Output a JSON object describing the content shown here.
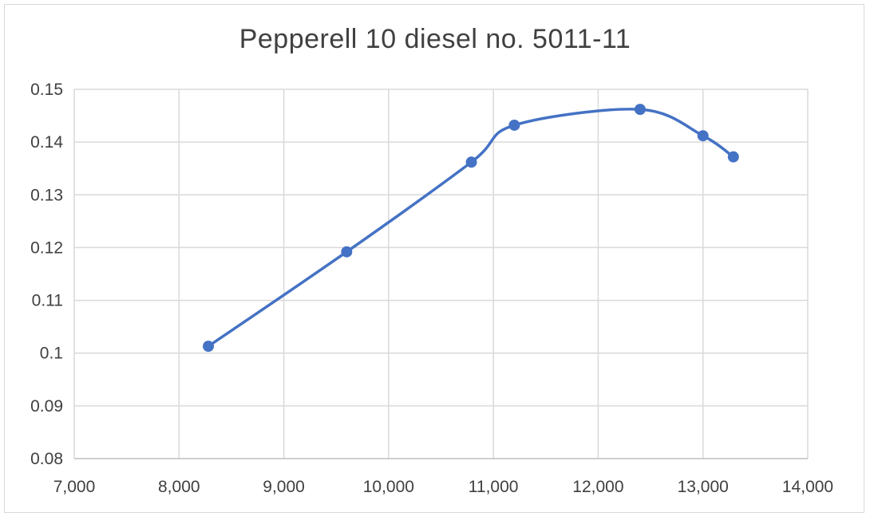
{
  "chart_data": {
    "type": "scatter",
    "title": "Pepperell 10 diesel no. 5011-11",
    "xlabel": "",
    "ylabel": "",
    "xlim": [
      7000,
      14000
    ],
    "ylim": [
      0.08,
      0.15
    ],
    "x_ticks": [
      7000,
      8000,
      9000,
      10000,
      11000,
      12000,
      13000,
      14000
    ],
    "x_tick_labels": [
      "7,000",
      "8,000",
      "9,000",
      "10,000",
      "11,000",
      "12,000",
      "13,000",
      "14,000"
    ],
    "y_ticks": [
      0.08,
      0.09,
      0.1,
      0.11,
      0.12,
      0.13,
      0.14,
      0.15
    ],
    "y_tick_labels": [
      "0.08",
      "0.09",
      "0.1",
      "0.11",
      "0.12",
      "0.13",
      "0.14",
      "0.15"
    ],
    "grid": true,
    "legend": "none",
    "smooth_line": true,
    "series": [
      {
        "color": "#4472c4",
        "x": [
          8280,
          9600,
          10790,
          11200,
          12400,
          13000,
          13290
        ],
        "y": [
          0.1013,
          0.1192,
          0.1362,
          0.1432,
          0.1462,
          0.1412,
          0.1372
        ]
      }
    ]
  }
}
